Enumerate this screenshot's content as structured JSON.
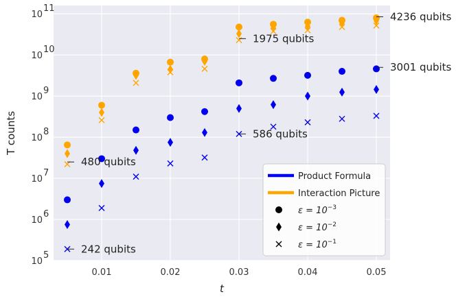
{
  "chart_data": {
    "type": "scatter",
    "xlabel": "t",
    "ylabel": "T counts",
    "yscale": "log",
    "xlim": [
      0.003,
      0.052
    ],
    "ylim": [
      100000,
      160000000000
    ],
    "x_ticks": [
      0.01,
      0.02,
      0.03,
      0.04,
      0.05
    ],
    "x_tick_labels": [
      "0.01",
      "0.02",
      "0.03",
      "0.04",
      "0.05"
    ],
    "y_ticks": [
      {
        "value": 100000,
        "mantissa": "10",
        "exponent": "5"
      },
      {
        "value": 1000000,
        "mantissa": "10",
        "exponent": "6"
      },
      {
        "value": 10000000,
        "mantissa": "10",
        "exponent": "7"
      },
      {
        "value": 100000000,
        "mantissa": "10",
        "exponent": "8"
      },
      {
        "value": 1000000000,
        "mantissa": "10",
        "exponent": "9"
      },
      {
        "value": 10000000000,
        "mantissa": "10",
        "exponent": "10"
      },
      {
        "value": 100000000000,
        "mantissa": "10",
        "exponent": "11"
      }
    ],
    "x": [
      0.005,
      0.01,
      0.015,
      0.02,
      0.025,
      0.03,
      0.035,
      0.04,
      0.045,
      0.05
    ],
    "series": [
      {
        "name": "Product Formula, ε=10^-3",
        "method": "Product Formula",
        "marker": "circle",
        "color": "#0000ee",
        "values": [
          3000000,
          30000000,
          150000000,
          300000000,
          420000000,
          2100000000,
          2700000000,
          3200000000,
          4000000000,
          4600000000
        ]
      },
      {
        "name": "Product Formula, ε=10^-2",
        "method": "Product Formula",
        "marker": "diamond",
        "color": "#0000ee",
        "values": [
          750000,
          7500000,
          48000000,
          75000000,
          130000000,
          500000000,
          620000000,
          1000000000,
          1250000000,
          1450000000
        ]
      },
      {
        "name": "Product Formula, ε=10^-1",
        "method": "Product Formula",
        "marker": "x",
        "color": "#0000ee",
        "values": [
          190000,
          1900000,
          11000000,
          23000000,
          32000000,
          120000000,
          180000000,
          230000000,
          280000000,
          330000000
        ]
      },
      {
        "name": "Interaction Picture, ε=10^-3",
        "method": "Interaction Picture",
        "marker": "circle",
        "color": "#ffa500",
        "values": [
          65000000,
          600000000,
          3600000000,
          6700000000,
          8000000000,
          48000000000,
          56000000000,
          63000000000,
          70000000000,
          80000000000
        ]
      },
      {
        "name": "Interaction Picture, ε=10^-2",
        "method": "Interaction Picture",
        "marker": "diamond",
        "color": "#ffa500",
        "values": [
          40000000,
          400000000,
          3200000000,
          4500000000,
          7000000000,
          33000000000,
          45000000000,
          50000000000,
          60000000000,
          68000000000
        ]
      },
      {
        "name": "Interaction Picture, ε=10^-1",
        "method": "Interaction Picture",
        "marker": "x",
        "color": "#ffa500",
        "values": [
          22000000,
          260000000,
          2100000000,
          3800000000,
          4600000000,
          23000000000,
          38000000000,
          40000000000,
          48000000000,
          52000000000
        ]
      }
    ],
    "annotations": [
      {
        "text": "480 qubits",
        "x": 0.005,
        "y": 25000000
      },
      {
        "text": "242 qubits",
        "x": 0.005,
        "y": 190000
      },
      {
        "text": "586 qubits",
        "x": 0.03,
        "y": 120000000
      },
      {
        "text": "1975 qubits",
        "x": 0.03,
        "y": 25000000000
      },
      {
        "text": "3001 qubits",
        "x": 0.05,
        "y": 5000000000
      },
      {
        "text": "4236 qubits",
        "x": 0.05,
        "y": 85000000000
      }
    ],
    "legend": {
      "position": "lower-right",
      "entries": [
        {
          "label": "Product Formula",
          "kind": "line",
          "color": "#0000ee"
        },
        {
          "label": "Interaction Picture",
          "kind": "line",
          "color": "#ffa500"
        },
        {
          "label_prefix": "ε = 10",
          "exponent": "−3",
          "kind": "marker",
          "marker": "circle"
        },
        {
          "label_prefix": "ε = 10",
          "exponent": "−2",
          "kind": "marker",
          "marker": "diamond"
        },
        {
          "label_prefix": "ε = 10",
          "exponent": "−1",
          "kind": "marker",
          "marker": "x"
        }
      ]
    },
    "colors": {
      "plot_bg": "#eaeaf2",
      "grid": "#ffffff",
      "legend_marker": "#000000"
    }
  }
}
